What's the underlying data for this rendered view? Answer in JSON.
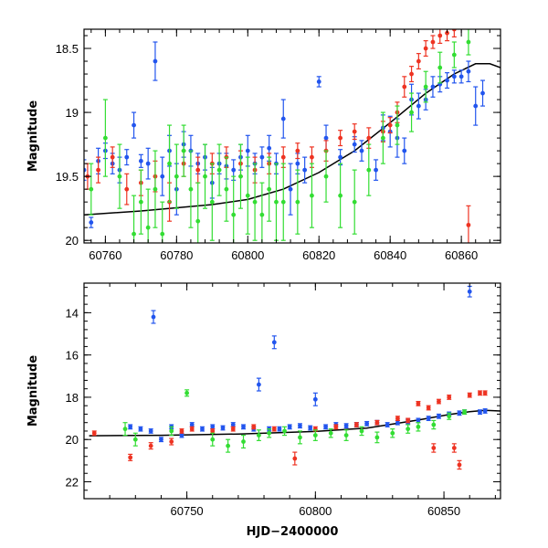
{
  "chart_data": [
    {
      "type": "scatter",
      "panel": "top",
      "xlabel": "",
      "ylabel": "Magnitude",
      "y_inverted": true,
      "xlim": [
        60754,
        60871
      ],
      "ylim": [
        18.35,
        20.02
      ],
      "x_ticks": [
        60760,
        60780,
        60800,
        60820,
        60840,
        60860
      ],
      "x_tick_labels": [
        "60760",
        "60780",
        "60800",
        "60820",
        "60840",
        "60860"
      ],
      "y_ticks": [
        18.5,
        19,
        19.5,
        20
      ],
      "y_tick_labels": [
        "18.5",
        "19",
        "19.5",
        "20"
      ],
      "model_curve": {
        "x": [
          60754,
          60770,
          60790,
          60800,
          60810,
          60820,
          60830,
          60840,
          60850,
          60858,
          60864,
          60868,
          60871
        ],
        "y": [
          19.8,
          19.77,
          19.72,
          19.68,
          19.6,
          19.47,
          19.3,
          19.08,
          18.85,
          18.7,
          18.62,
          18.62,
          18.65
        ]
      },
      "series": [
        {
          "color": "#2255ee",
          "x": [
            60754,
            60756,
            60758,
            60760,
            60762,
            60764,
            60766,
            60768,
            60770,
            60772,
            60774,
            60776,
            60778,
            60780,
            60782,
            60784,
            60786,
            60788,
            60790,
            60792,
            60794,
            60796,
            60798,
            60800,
            60802,
            60804,
            60806,
            60808,
            60810,
            60812,
            60814,
            60816,
            60820,
            60822,
            60826,
            60830,
            60832,
            60836,
            60838,
            60840,
            60842,
            60844,
            60846,
            60848,
            60850,
            60852,
            60854,
            60856,
            60858,
            60860,
            60862,
            60864,
            60866
          ],
          "y": [
            19.45,
            19.86,
            19.38,
            19.3,
            19.4,
            19.45,
            19.35,
            19.1,
            19.38,
            19.4,
            18.6,
            19.5,
            19.3,
            19.6,
            19.25,
            19.3,
            19.4,
            19.35,
            19.55,
            19.4,
            19.42,
            19.45,
            19.35,
            19.3,
            19.4,
            19.35,
            19.28,
            19.4,
            19.05,
            19.6,
            19.4,
            19.45,
            18.76,
            19.2,
            19.35,
            19.25,
            19.3,
            19.45,
            19.12,
            19.15,
            19.2,
            19.3,
            18.9,
            18.95,
            18.9,
            18.8,
            18.78,
            18.75,
            18.72,
            18.72,
            18.68,
            18.95,
            18.85
          ],
          "err": [
            0.08,
            0.04,
            0.1,
            0.06,
            0.08,
            0.1,
            0.06,
            0.1,
            0.05,
            0.12,
            0.15,
            0.15,
            0.12,
            0.2,
            0.1,
            0.12,
            0.08,
            0.1,
            0.12,
            0.08,
            0.1,
            0.08,
            0.1,
            0.12,
            0.08,
            0.08,
            0.1,
            0.08,
            0.15,
            0.2,
            0.08,
            0.1,
            0.04,
            0.1,
            0.06,
            0.06,
            0.08,
            0.08,
            0.1,
            0.12,
            0.15,
            0.1,
            0.12,
            0.1,
            0.08,
            0.08,
            0.06,
            0.06,
            0.05,
            0.05,
            0.08,
            0.15,
            0.1
          ]
        },
        {
          "color": "#ee3322",
          "x": [
            60755,
            60758,
            60762,
            60766,
            60770,
            60774,
            60778,
            60782,
            60786,
            60790,
            60794,
            60798,
            60802,
            60806,
            60810,
            60814,
            60818,
            60822,
            60826,
            60830,
            60834,
            60838,
            60840,
            60842,
            60844,
            60846,
            60848,
            60850,
            60852,
            60854,
            60856,
            60858,
            60862
          ],
          "y": [
            19.5,
            19.45,
            19.35,
            19.6,
            19.55,
            19.5,
            19.7,
            19.4,
            19.45,
            19.4,
            19.35,
            19.4,
            19.45,
            19.4,
            19.35,
            19.3,
            19.35,
            19.3,
            19.2,
            19.15,
            19.2,
            19.15,
            19.1,
            19.0,
            18.8,
            18.7,
            18.6,
            18.5,
            18.45,
            18.4,
            18.38,
            18.35,
            19.88
          ],
          "err": [
            0.1,
            0.1,
            0.08,
            0.12,
            0.1,
            0.12,
            0.15,
            0.1,
            0.1,
            0.08,
            0.08,
            0.1,
            0.1,
            0.08,
            0.08,
            0.06,
            0.08,
            0.08,
            0.06,
            0.06,
            0.08,
            0.08,
            0.06,
            0.08,
            0.08,
            0.06,
            0.06,
            0.06,
            0.05,
            0.06,
            0.06,
            0.06,
            0.15
          ]
        },
        {
          "color": "#33dd33",
          "x": [
            60756,
            60760,
            60764,
            60768,
            60770,
            60772,
            60774,
            60776,
            60778,
            60780,
            60782,
            60784,
            60786,
            60788,
            60790,
            60792,
            60794,
            60796,
            60798,
            60800,
            60802,
            60804,
            60806,
            60808,
            60810,
            60814,
            60818,
            60822,
            60826,
            60830,
            60834,
            60838,
            60842,
            60846,
            60850,
            60854,
            60858,
            60862
          ],
          "y": [
            19.6,
            19.2,
            19.5,
            19.95,
            19.7,
            19.9,
            19.6,
            19.95,
            19.4,
            19.5,
            19.3,
            19.6,
            19.85,
            19.5,
            19.7,
            19.45,
            19.6,
            19.8,
            19.5,
            19.65,
            19.7,
            19.8,
            19.6,
            19.7,
            19.7,
            19.7,
            19.65,
            19.5,
            19.65,
            19.7,
            19.45,
            19.2,
            19.1,
            19.0,
            18.8,
            18.65,
            18.55,
            18.45
          ],
          "err": [
            0.2,
            0.3,
            0.25,
            0.3,
            0.25,
            0.3,
            0.3,
            0.25,
            0.3,
            0.25,
            0.2,
            0.3,
            0.3,
            0.25,
            0.3,
            0.2,
            0.25,
            0.3,
            0.25,
            0.3,
            0.3,
            0.25,
            0.25,
            0.3,
            0.3,
            0.25,
            0.25,
            0.2,
            0.25,
            0.25,
            0.2,
            0.2,
            0.15,
            0.15,
            0.12,
            0.12,
            0.1,
            0.1
          ]
        }
      ]
    },
    {
      "type": "scatter",
      "panel": "bottom",
      "xlabel": "HJD−2400000",
      "ylabel": "Magnitude",
      "y_inverted": true,
      "xlim": [
        60710,
        60872
      ],
      "ylim": [
        12.6,
        22.8
      ],
      "x_ticks": [
        60750,
        60800,
        60850
      ],
      "x_tick_labels": [
        "60750",
        "60800",
        "60850"
      ],
      "y_ticks": [
        14,
        16,
        18,
        20,
        22
      ],
      "y_tick_labels": [
        "14",
        "16",
        "18",
        "20",
        "22"
      ],
      "model_curve": {
        "x": [
          60712,
          60740,
          60770,
          60800,
          60820,
          60840,
          60852,
          60860,
          60866,
          60872
        ],
        "y": [
          19.82,
          19.8,
          19.74,
          19.62,
          19.46,
          19.08,
          18.82,
          18.68,
          18.62,
          18.65
        ]
      },
      "series": [
        {
          "color": "#2255ee",
          "x": [
            60728,
            60732,
            60736,
            60737,
            60740,
            60744,
            60748,
            60752,
            60756,
            60760,
            60764,
            60768,
            60772,
            60776,
            60778,
            60782,
            60784,
            60786,
            60790,
            60794,
            60798,
            60800,
            60804,
            60808,
            60812,
            60816,
            60820,
            60824,
            60828,
            60832,
            60836,
            60840,
            60844,
            60848,
            60852,
            60856,
            60858,
            60860,
            60864,
            60866
          ],
          "y": [
            19.4,
            19.5,
            19.6,
            14.2,
            20.0,
            19.4,
            19.8,
            19.3,
            19.5,
            19.4,
            19.45,
            19.3,
            19.4,
            19.5,
            17.4,
            19.5,
            15.4,
            19.5,
            19.4,
            19.35,
            19.45,
            18.1,
            19.4,
            19.3,
            19.35,
            19.3,
            19.25,
            19.2,
            19.3,
            19.2,
            19.15,
            19.1,
            19.0,
            18.9,
            18.8,
            18.75,
            18.7,
            13.0,
            18.7,
            18.65
          ],
          "err": [
            0.1,
            0.1,
            0.1,
            0.3,
            0.1,
            0.1,
            0.1,
            0.1,
            0.1,
            0.1,
            0.1,
            0.1,
            0.1,
            0.1,
            0.3,
            0.1,
            0.3,
            0.1,
            0.1,
            0.1,
            0.1,
            0.3,
            0.1,
            0.1,
            0.1,
            0.1,
            0.1,
            0.1,
            0.1,
            0.1,
            0.1,
            0.1,
            0.1,
            0.1,
            0.1,
            0.1,
            0.1,
            0.25,
            0.1,
            0.1
          ]
        },
        {
          "color": "#ee3322",
          "x": [
            60714,
            60728,
            60736,
            60744,
            60748,
            60752,
            60760,
            60768,
            60776,
            60784,
            60792,
            60800,
            60808,
            60816,
            60824,
            60832,
            60836,
            60840,
            60844,
            60846,
            60848,
            60852,
            60854,
            60856,
            60860,
            60864,
            60866
          ],
          "y": [
            19.7,
            20.85,
            20.3,
            20.1,
            19.6,
            19.5,
            19.6,
            19.5,
            19.4,
            19.5,
            20.9,
            19.5,
            19.4,
            19.3,
            19.2,
            19.0,
            19.1,
            18.3,
            18.5,
            20.4,
            18.2,
            18.0,
            20.4,
            21.2,
            17.9,
            17.8,
            17.8
          ],
          "err": [
            0.1,
            0.15,
            0.15,
            0.15,
            0.1,
            0.1,
            0.1,
            0.1,
            0.1,
            0.1,
            0.3,
            0.1,
            0.1,
            0.1,
            0.1,
            0.1,
            0.1,
            0.1,
            0.1,
            0.2,
            0.1,
            0.1,
            0.2,
            0.2,
            0.1,
            0.1,
            0.1
          ]
        },
        {
          "color": "#33dd33",
          "x": [
            60726,
            60730,
            60744,
            60750,
            60760,
            60766,
            60772,
            60778,
            60782,
            60788,
            60794,
            60800,
            60806,
            60812,
            60818,
            60824,
            60830,
            60836,
            60840,
            60846,
            60852,
            60858
          ],
          "y": [
            19.5,
            20.0,
            19.6,
            17.8,
            20.0,
            20.3,
            20.1,
            19.8,
            19.7,
            19.6,
            19.9,
            19.8,
            19.7,
            19.8,
            19.6,
            19.9,
            19.7,
            19.5,
            19.4,
            19.3,
            18.9,
            18.7
          ],
          "err": [
            0.3,
            0.3,
            0.2,
            0.15,
            0.3,
            0.3,
            0.3,
            0.25,
            0.2,
            0.2,
            0.3,
            0.25,
            0.2,
            0.25,
            0.2,
            0.25,
            0.2,
            0.2,
            0.2,
            0.2,
            0.15,
            0.1
          ]
        }
      ]
    }
  ]
}
